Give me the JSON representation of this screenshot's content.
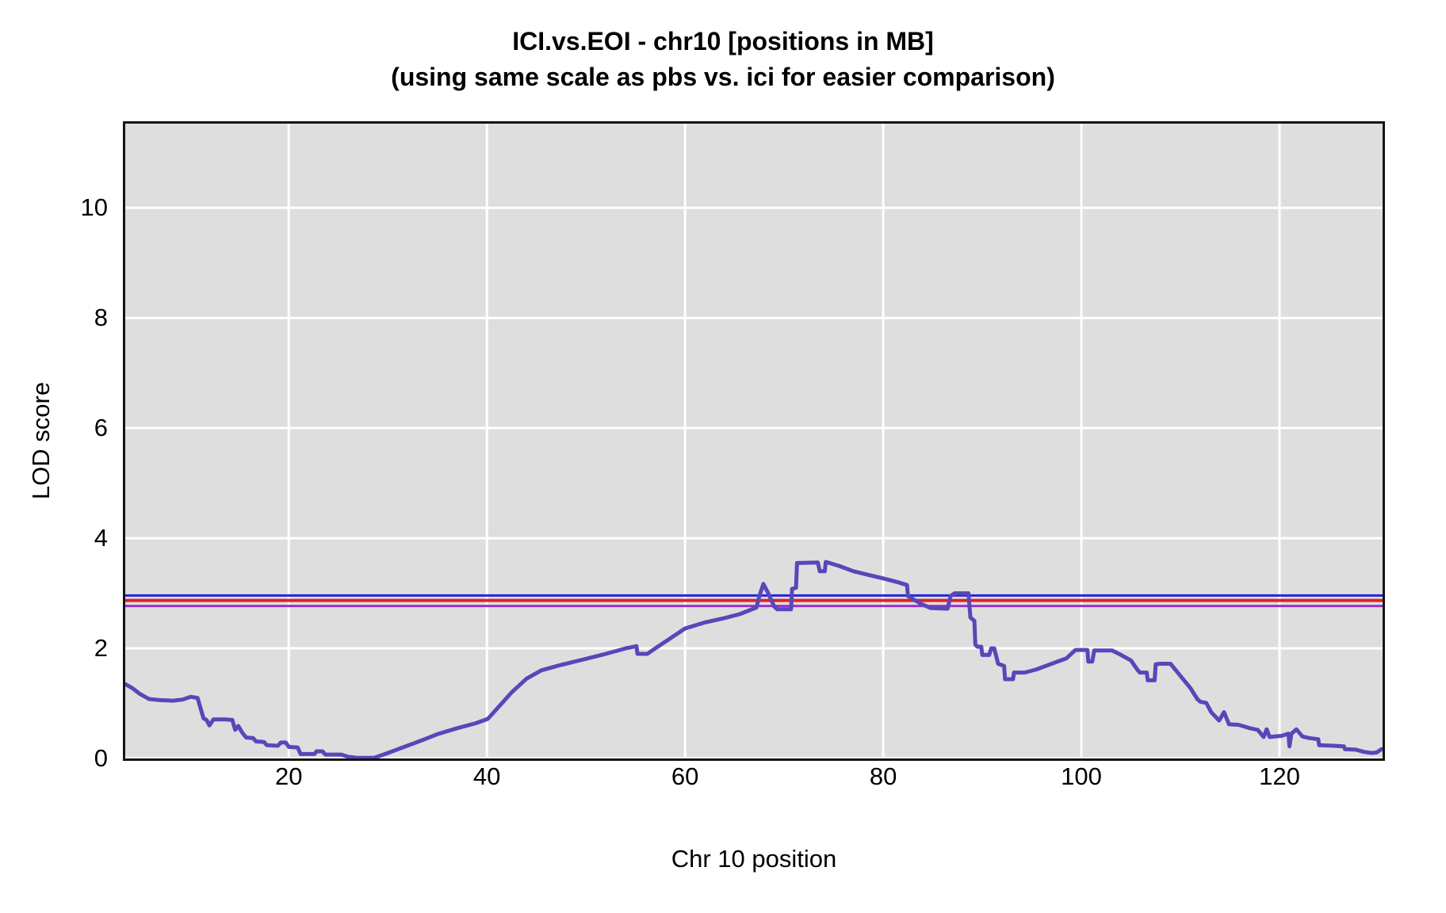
{
  "title": {
    "line1": "ICI.vs.EOI - chr10 [positions in MB]",
    "line2": "(using same scale as pbs vs. ici for easier comparison)"
  },
  "chart_data": {
    "type": "line",
    "title": "ICI.vs.EOI - chr10 [positions in MB]",
    "subtitle": "(using same scale as pbs vs. ici for easier comparison)",
    "xlabel": "Chr 10 position",
    "ylabel": "LOD score",
    "xlim": [
      3.5,
      130.4
    ],
    "ylim": [
      0,
      11.53
    ],
    "xticks": [
      20,
      40,
      60,
      80,
      100,
      120
    ],
    "yticks": [
      0,
      2,
      4,
      6,
      8,
      10
    ],
    "grid": true,
    "legend": "none",
    "plot_bg": "#dedede",
    "grid_color": "#ffffff",
    "frame_color": "#141414",
    "thresholds": [
      {
        "name": "upper-threshold",
        "value": 2.96,
        "color": "#2424dd",
        "width": 3
      },
      {
        "name": "middle-threshold",
        "value": 2.87,
        "color": "#e02222",
        "width": 4
      },
      {
        "name": "lower-threshold",
        "value": 2.77,
        "color": "#9a30cf",
        "width": 3
      }
    ],
    "series": [
      {
        "name": "LOD",
        "color": "#5747b9",
        "width": 5,
        "points": [
          [
            3.5,
            1.35
          ],
          [
            4.2,
            1.28
          ],
          [
            5.0,
            1.17
          ],
          [
            5.9,
            1.08
          ],
          [
            7.0,
            1.06
          ],
          [
            8.3,
            1.05
          ],
          [
            9.3,
            1.07
          ],
          [
            10.1,
            1.12
          ],
          [
            10.8,
            1.1
          ],
          [
            11.4,
            0.73
          ],
          [
            11.7,
            0.7
          ],
          [
            12.0,
            0.6
          ],
          [
            12.4,
            0.71
          ],
          [
            13.6,
            0.71
          ],
          [
            14.3,
            0.7
          ],
          [
            14.6,
            0.52
          ],
          [
            14.9,
            0.59
          ],
          [
            15.3,
            0.47
          ],
          [
            15.7,
            0.38
          ],
          [
            16.4,
            0.37
          ],
          [
            16.7,
            0.31
          ],
          [
            17.5,
            0.3
          ],
          [
            17.8,
            0.24
          ],
          [
            18.9,
            0.23
          ],
          [
            19.2,
            0.29
          ],
          [
            19.7,
            0.29
          ],
          [
            20.0,
            0.21
          ],
          [
            20.9,
            0.2
          ],
          [
            21.2,
            0.08
          ],
          [
            22.6,
            0.08
          ],
          [
            22.8,
            0.13
          ],
          [
            23.4,
            0.13
          ],
          [
            23.7,
            0.07
          ],
          [
            25.3,
            0.07
          ],
          [
            26.0,
            0.03
          ],
          [
            27.0,
            0.01
          ],
          [
            28.6,
            0.01
          ],
          [
            30.0,
            0.1
          ],
          [
            31.5,
            0.2
          ],
          [
            33.0,
            0.3
          ],
          [
            35.0,
            0.44
          ],
          [
            37.0,
            0.55
          ],
          [
            38.9,
            0.64
          ],
          [
            40.1,
            0.72
          ],
          [
            41.0,
            0.9
          ],
          [
            42.5,
            1.2
          ],
          [
            44.0,
            1.45
          ],
          [
            45.5,
            1.6
          ],
          [
            47.5,
            1.7
          ],
          [
            50.0,
            1.81
          ],
          [
            52.0,
            1.9
          ],
          [
            54.0,
            2.0
          ],
          [
            55.1,
            2.04
          ],
          [
            55.2,
            1.9
          ],
          [
            56.2,
            1.9
          ],
          [
            57.0,
            2.0
          ],
          [
            58.5,
            2.18
          ],
          [
            60.0,
            2.36
          ],
          [
            62.0,
            2.47
          ],
          [
            64.0,
            2.55
          ],
          [
            65.5,
            2.62
          ],
          [
            67.2,
            2.74
          ],
          [
            67.5,
            2.95
          ],
          [
            67.9,
            3.17
          ],
          [
            68.4,
            3.0
          ],
          [
            69.0,
            2.76
          ],
          [
            69.3,
            2.71
          ],
          [
            70.7,
            2.71
          ],
          [
            70.8,
            3.08
          ],
          [
            71.2,
            3.1
          ],
          [
            71.3,
            3.55
          ],
          [
            73.4,
            3.56
          ],
          [
            73.6,
            3.4
          ],
          [
            74.1,
            3.4
          ],
          [
            74.2,
            3.57
          ],
          [
            75.5,
            3.5
          ],
          [
            77.0,
            3.4
          ],
          [
            78.6,
            3.33
          ],
          [
            80.0,
            3.27
          ],
          [
            81.5,
            3.2
          ],
          [
            82.4,
            3.15
          ],
          [
            82.5,
            2.95
          ],
          [
            83.8,
            2.81
          ],
          [
            84.8,
            2.73
          ],
          [
            86.5,
            2.72
          ],
          [
            86.8,
            2.95
          ],
          [
            87.2,
            3.0
          ],
          [
            88.6,
            3.0
          ],
          [
            88.8,
            2.56
          ],
          [
            89.2,
            2.5
          ],
          [
            89.3,
            2.07
          ],
          [
            89.5,
            2.03
          ],
          [
            89.9,
            2.03
          ],
          [
            90.0,
            1.88
          ],
          [
            90.7,
            1.88
          ],
          [
            90.9,
            2.0
          ],
          [
            91.2,
            2.0
          ],
          [
            91.6,
            1.72
          ],
          [
            92.2,
            1.68
          ],
          [
            92.3,
            1.44
          ],
          [
            93.1,
            1.44
          ],
          [
            93.2,
            1.56
          ],
          [
            94.3,
            1.56
          ],
          [
            95.5,
            1.62
          ],
          [
            97.0,
            1.72
          ],
          [
            98.5,
            1.82
          ],
          [
            99.4,
            1.97
          ],
          [
            100.6,
            1.97
          ],
          [
            100.7,
            1.76
          ],
          [
            101.1,
            1.76
          ],
          [
            101.3,
            1.96
          ],
          [
            103.1,
            1.96
          ],
          [
            104.0,
            1.88
          ],
          [
            105.0,
            1.78
          ],
          [
            105.7,
            1.6
          ],
          [
            105.9,
            1.56
          ],
          [
            106.6,
            1.56
          ],
          [
            106.7,
            1.42
          ],
          [
            107.4,
            1.42
          ],
          [
            107.5,
            1.71
          ],
          [
            107.9,
            1.72
          ],
          [
            109.0,
            1.72
          ],
          [
            110.0,
            1.5
          ],
          [
            111.0,
            1.28
          ],
          [
            111.7,
            1.08
          ],
          [
            112.0,
            1.03
          ],
          [
            112.6,
            1.01
          ],
          [
            113.1,
            0.84
          ],
          [
            113.9,
            0.69
          ],
          [
            114.4,
            0.84
          ],
          [
            114.9,
            0.62
          ],
          [
            115.9,
            0.61
          ],
          [
            117.0,
            0.55
          ],
          [
            117.8,
            0.52
          ],
          [
            118.4,
            0.39
          ],
          [
            118.7,
            0.53
          ],
          [
            119.0,
            0.39
          ],
          [
            120.2,
            0.41
          ],
          [
            120.9,
            0.45
          ],
          [
            121.0,
            0.22
          ],
          [
            121.2,
            0.45
          ],
          [
            121.7,
            0.53
          ],
          [
            122.3,
            0.4
          ],
          [
            123.0,
            0.37
          ],
          [
            123.9,
            0.35
          ],
          [
            124.0,
            0.24
          ],
          [
            125.5,
            0.23
          ],
          [
            126.5,
            0.22
          ],
          [
            126.6,
            0.17
          ],
          [
            127.7,
            0.16
          ],
          [
            128.5,
            0.12
          ],
          [
            129.3,
            0.1
          ],
          [
            129.8,
            0.11
          ],
          [
            130.3,
            0.17
          ]
        ]
      }
    ]
  }
}
